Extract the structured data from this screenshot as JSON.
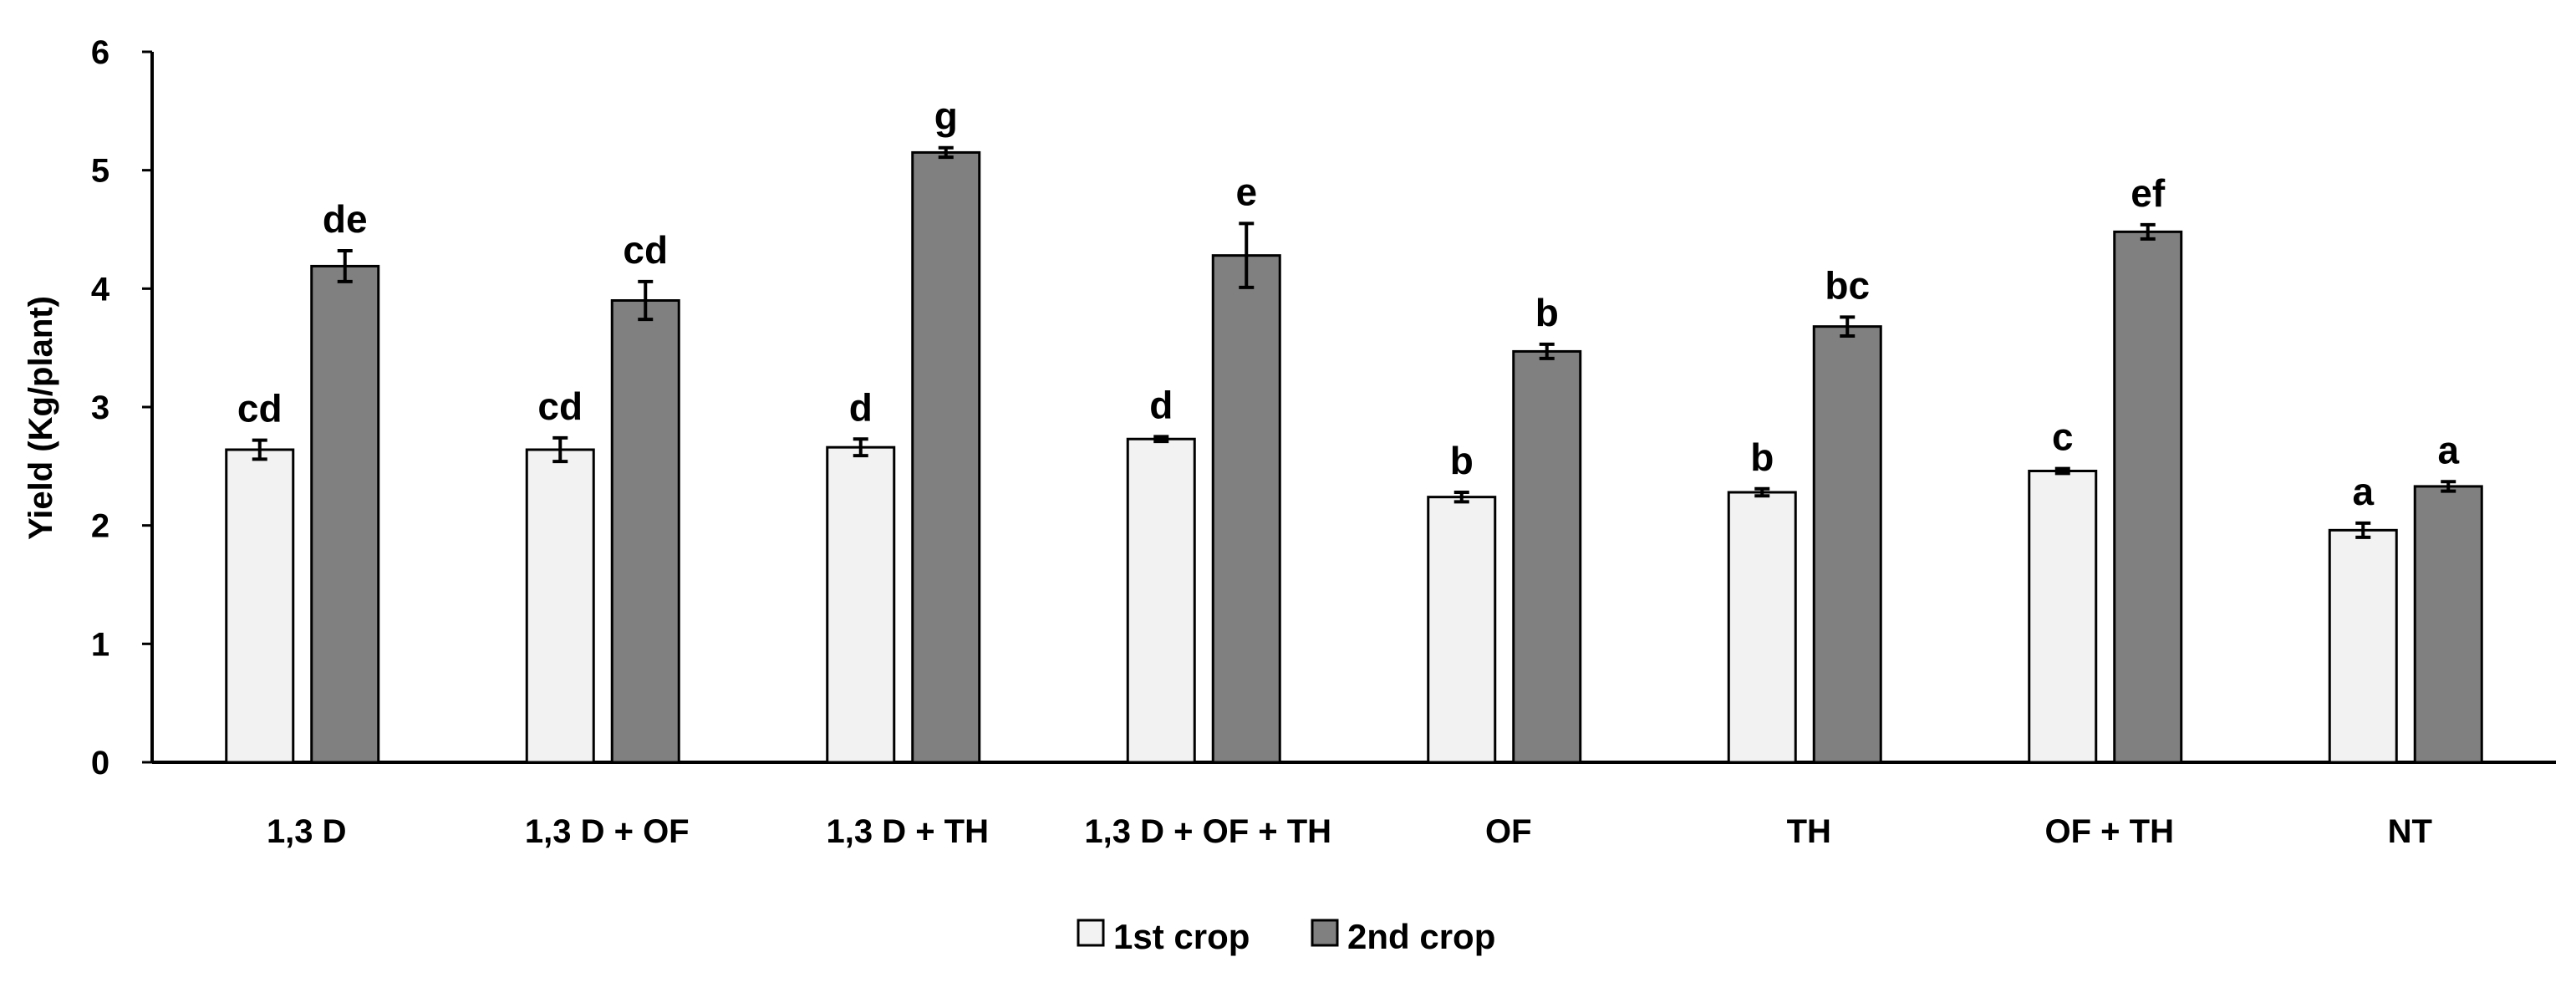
{
  "chart_data": {
    "type": "bar",
    "ylabel": "Yield (Kg/plant)",
    "xlabel": "",
    "ylim": [
      0,
      6
    ],
    "yticks": [
      "0",
      "1",
      "2",
      "3",
      "4",
      "5",
      "6"
    ],
    "grid": false,
    "legend_position": "bottom",
    "categories": [
      "1,3 D",
      "1,3 D + OF",
      "1,3 D + TH",
      "1,3 D + OF + TH",
      "OF",
      "TH",
      "OF + TH",
      "NT"
    ],
    "series": [
      {
        "name": "1st crop",
        "color": "#f2f2f2",
        "values": [
          2.64,
          2.64,
          2.66,
          2.73,
          2.24,
          2.28,
          2.46,
          1.96
        ],
        "errors": [
          0.08,
          0.1,
          0.07,
          0.02,
          0.04,
          0.03,
          0.02,
          0.06
        ],
        "labels": [
          "cd",
          "cd",
          "d",
          "d",
          "b",
          "b",
          "c",
          "a"
        ]
      },
      {
        "name": "2nd crop",
        "color": "#808080",
        "values": [
          4.19,
          3.9,
          5.15,
          4.28,
          3.47,
          3.68,
          4.48,
          2.33
        ],
        "errors": [
          0.13,
          0.16,
          0.04,
          0.27,
          0.06,
          0.08,
          0.06,
          0.04
        ],
        "labels": [
          "de",
          "cd",
          "g",
          "e",
          "b",
          "bc",
          "ef",
          "a"
        ]
      }
    ]
  }
}
